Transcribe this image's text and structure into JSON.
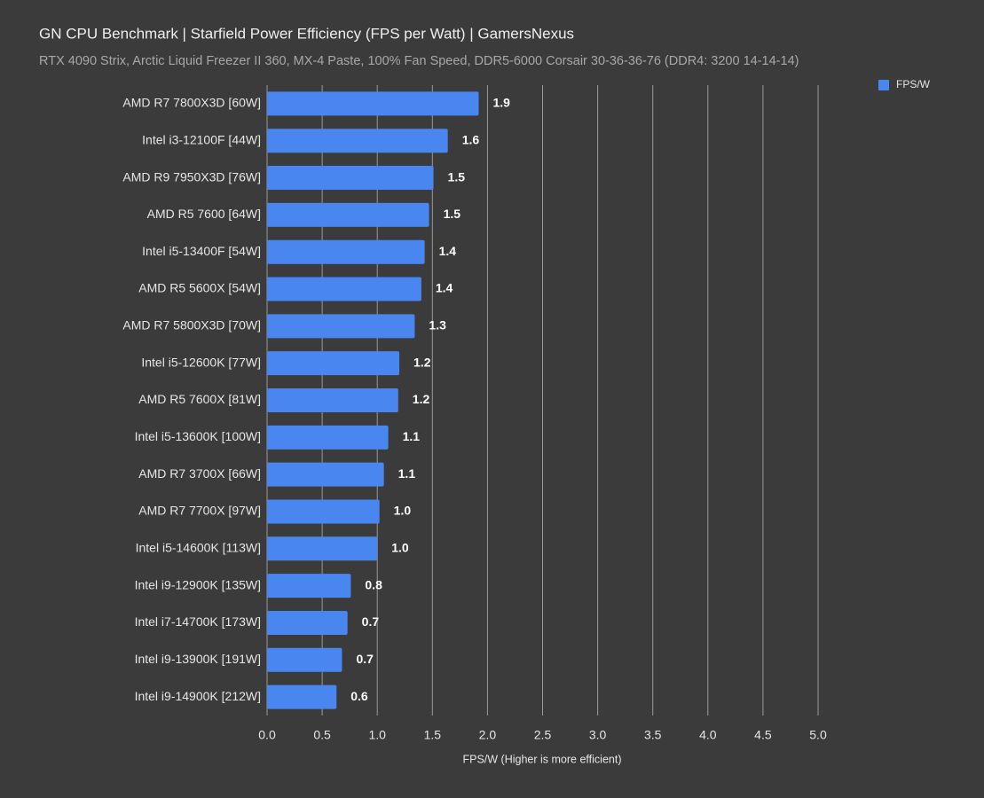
{
  "chart_data": {
    "type": "hbar",
    "title": "GN CPU Benchmark | Starfield Power Efficiency (FPS per Watt) | GamersNexus",
    "subtitle": "RTX 4090 Strix, Arctic Liquid Freezer II 360, MX-4 Paste, 100% Fan Speed, DDR5-6000 Corsair 30-36-36-76 (DDR4: 3200 14-14-14)",
    "x_label": "FPS/W (Higher is more efficient)",
    "categories": [
      "AMD R7 7800X3D [60W]",
      "Intel i3-12100F [44W]",
      "AMD R9 7950X3D [76W]",
      "AMD R5 7600 [64W]",
      "Intel i5-13400F [54W]",
      "AMD R5 5600X [54W]",
      "AMD R7 5800X3D [70W]",
      "Intel i5-12600K [77W]",
      "AMD R5 7600X [81W]",
      "Intel i5-13600K [100W]",
      "AMD R7 3700X [66W]",
      "AMD R7 7700X [97W]",
      "Intel i5-14600K [113W]",
      "Intel i9-12900K [135W]",
      "Intel i7-14700K [173W]",
      "Intel i9-13900K [191W]",
      "Intel i9-14900K [212W]"
    ],
    "series": [
      {
        "name": "FPS/W",
        "color": "#4a86f0",
        "values": [
          1.92,
          1.64,
          1.51,
          1.47,
          1.43,
          1.4,
          1.34,
          1.2,
          1.19,
          1.1,
          1.06,
          1.02,
          1.0,
          0.76,
          0.73,
          0.68,
          0.63
        ],
        "value_labels": [
          "1.9",
          "1.6",
          "1.5",
          "1.5",
          "1.4",
          "1.4",
          "1.3",
          "1.2",
          "1.2",
          "1.1",
          "1.1",
          "1.0",
          "1.0",
          "0.8",
          "0.7",
          "0.7",
          "0.6"
        ]
      }
    ],
    "xlim": [
      0,
      5
    ],
    "xticks": [
      {
        "value": 0,
        "label": "0.0"
      },
      0.5,
      {
        "value": 1,
        "label": "1.0"
      },
      1.5,
      {
        "value": 2,
        "label": "2.0"
      },
      2.5,
      {
        "value": 3,
        "label": "3.0"
      },
      3.5,
      {
        "value": 4,
        "label": "4.0"
      },
      4.5,
      {
        "value": 5,
        "label": "5.0"
      }
    ],
    "grid": true,
    "legend": "top-right"
  }
}
